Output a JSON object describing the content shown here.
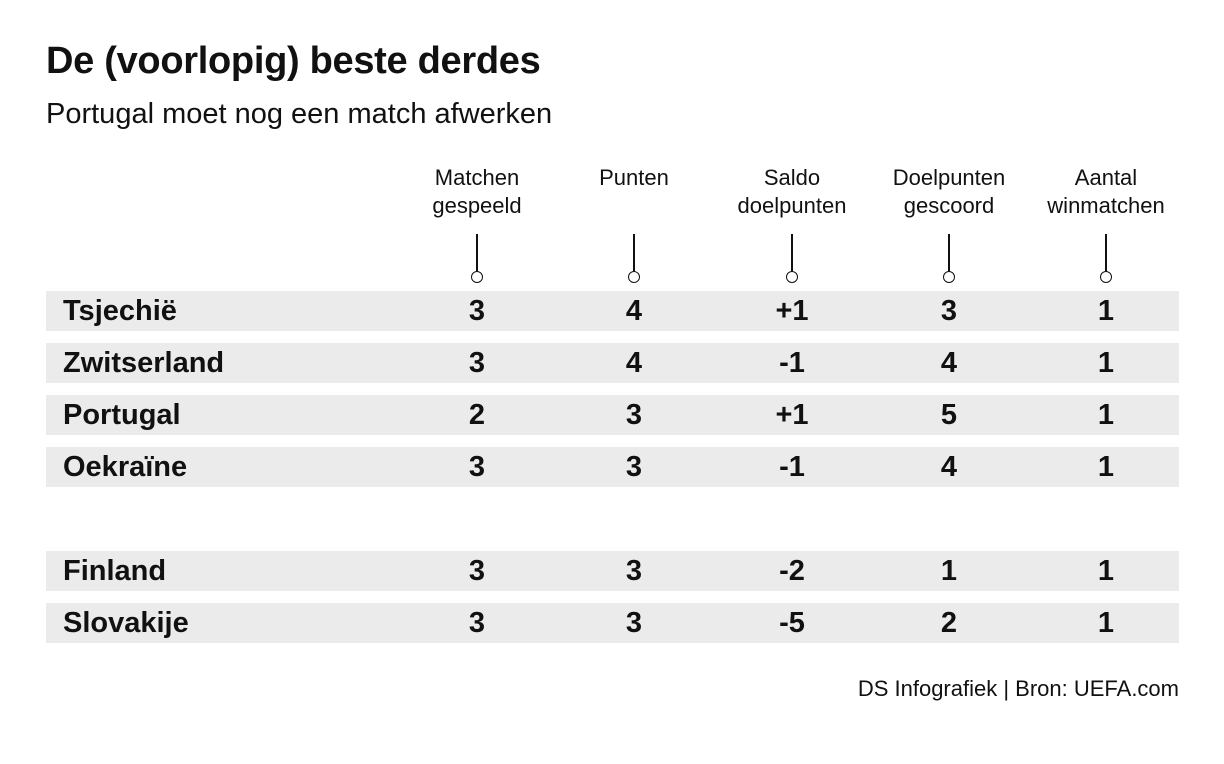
{
  "title": "De (voorlopig) beste derdes",
  "subtitle": "Portugal moet nog een match afwerken",
  "credit": "DS Infografiek | Bron: UEFA.com",
  "chart_data": {
    "type": "table",
    "columns": [
      "Matchen\ngespeeld",
      "Punten",
      "Saldo\ndoelpunten",
      "Doelpunten\ngescoord",
      "Aantal\nwinmatchen"
    ],
    "rows": [
      {
        "team": "Tsjechië",
        "values": [
          "3",
          "4",
          "+1",
          "3",
          "1"
        ]
      },
      {
        "team": "Zwitserland",
        "values": [
          "3",
          "4",
          "-1",
          "4",
          "1"
        ]
      },
      {
        "team": "Portugal",
        "values": [
          "2",
          "3",
          "+1",
          "5",
          "1"
        ]
      },
      {
        "team": "Oekraïne",
        "values": [
          "3",
          "3",
          "-1",
          "4",
          "1"
        ]
      },
      {
        "team": "Finland",
        "values": [
          "3",
          "3",
          "-2",
          "1",
          "1"
        ]
      },
      {
        "team": "Slovakije",
        "values": [
          "3",
          "3",
          "-5",
          "2",
          "1"
        ]
      }
    ]
  }
}
